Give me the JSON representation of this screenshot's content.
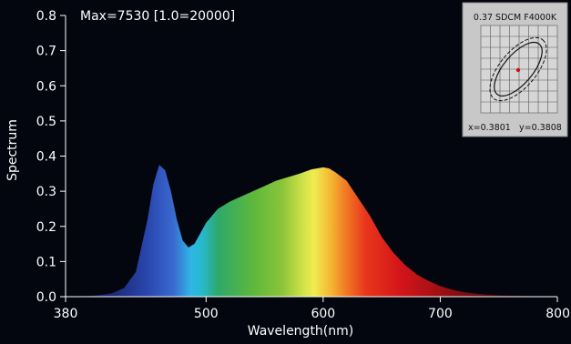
{
  "chart_data": {
    "type": "area",
    "header_text": "Max=7530  [1.0=20000]",
    "xlabel": "Wavelength(nm)",
    "ylabel": "Spectrum",
    "xlim": [
      380,
      800
    ],
    "ylim": [
      0,
      0.8
    ],
    "x_ticks": [
      "380",
      "500",
      "600",
      "700",
      "800"
    ],
    "y_ticks": [
      "0.0",
      "0.1",
      "0.2",
      "0.3",
      "0.4",
      "0.5",
      "0.6",
      "0.7",
      "0.8"
    ],
    "x": [
      380,
      400,
      410,
      420,
      430,
      440,
      450,
      455,
      460,
      465,
      470,
      475,
      480,
      485,
      490,
      495,
      500,
      510,
      520,
      530,
      540,
      550,
      560,
      570,
      580,
      590,
      600,
      605,
      610,
      620,
      630,
      640,
      650,
      660,
      670,
      680,
      690,
      700,
      710,
      720,
      730,
      740,
      750,
      760,
      770,
      780,
      790,
      800
    ],
    "y": [
      0.0,
      0.002,
      0.005,
      0.01,
      0.025,
      0.07,
      0.22,
      0.32,
      0.375,
      0.36,
      0.3,
      0.22,
      0.16,
      0.14,
      0.15,
      0.18,
      0.21,
      0.25,
      0.27,
      0.285,
      0.3,
      0.315,
      0.33,
      0.34,
      0.35,
      0.362,
      0.368,
      0.365,
      0.355,
      0.33,
      0.28,
      0.23,
      0.17,
      0.125,
      0.09,
      0.063,
      0.045,
      0.03,
      0.02,
      0.013,
      0.009,
      0.006,
      0.004,
      0.003,
      0.002,
      0.001,
      0.0005,
      0.0
    ],
    "colors": {
      "background": "#03060f",
      "axis": "#ffffff",
      "inset_bg": "#c8c8c8"
    }
  },
  "inset": {
    "title": "0.37 SDCM  F4000K",
    "x_value": "x=0.3801",
    "y_value": "y=0.3808"
  }
}
